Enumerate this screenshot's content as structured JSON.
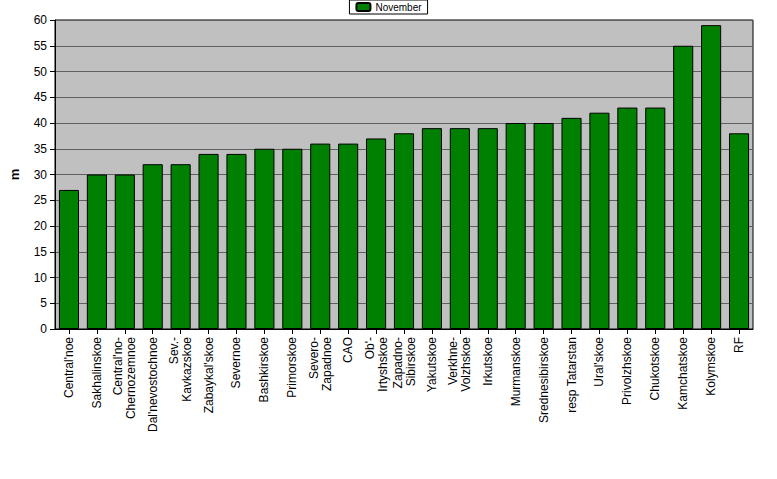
{
  "chart_data": {
    "type": "bar",
    "categories": [
      "Central'noe",
      "Sakhalinskoe",
      "Central'no-\nChernozemnoe",
      "Dal'nevostochnoe",
      "Sev.-\nKavkazskoe",
      "Zabaykal'skoe",
      "Severnoe",
      "Bashkirskoe",
      "Primorskoe",
      "Severo-\nZapadnoe",
      "CAO",
      "Ob'-\nIrtyshskoe",
      "Zapadno-\nSibirskoe",
      "Yakutskoe",
      "Verkhne-\nVolzhskoe",
      "Irkutskoe",
      "Murmanskoe",
      "Srednesibirskoe",
      "resp Tatarstan",
      "Ural'skoe",
      "Privolzhskoe",
      "Chukotskoe",
      "Kamchatskoe",
      "Kolymskoe",
      "RF"
    ],
    "series": [
      {
        "name": "November",
        "color": "#008000",
        "values": [
          27,
          30,
          30,
          32,
          32,
          34,
          34,
          35,
          35,
          36,
          36,
          37,
          38,
          39,
          39,
          39,
          40,
          40,
          41,
          42,
          43,
          43,
          55,
          59,
          38
        ]
      }
    ],
    "y_label": "m",
    "ylim": [
      0,
      60
    ],
    "yticks": [
      0,
      5,
      10,
      15,
      20,
      25,
      30,
      35,
      40,
      45,
      50,
      55,
      60
    ],
    "grid": true,
    "legend": "top"
  }
}
